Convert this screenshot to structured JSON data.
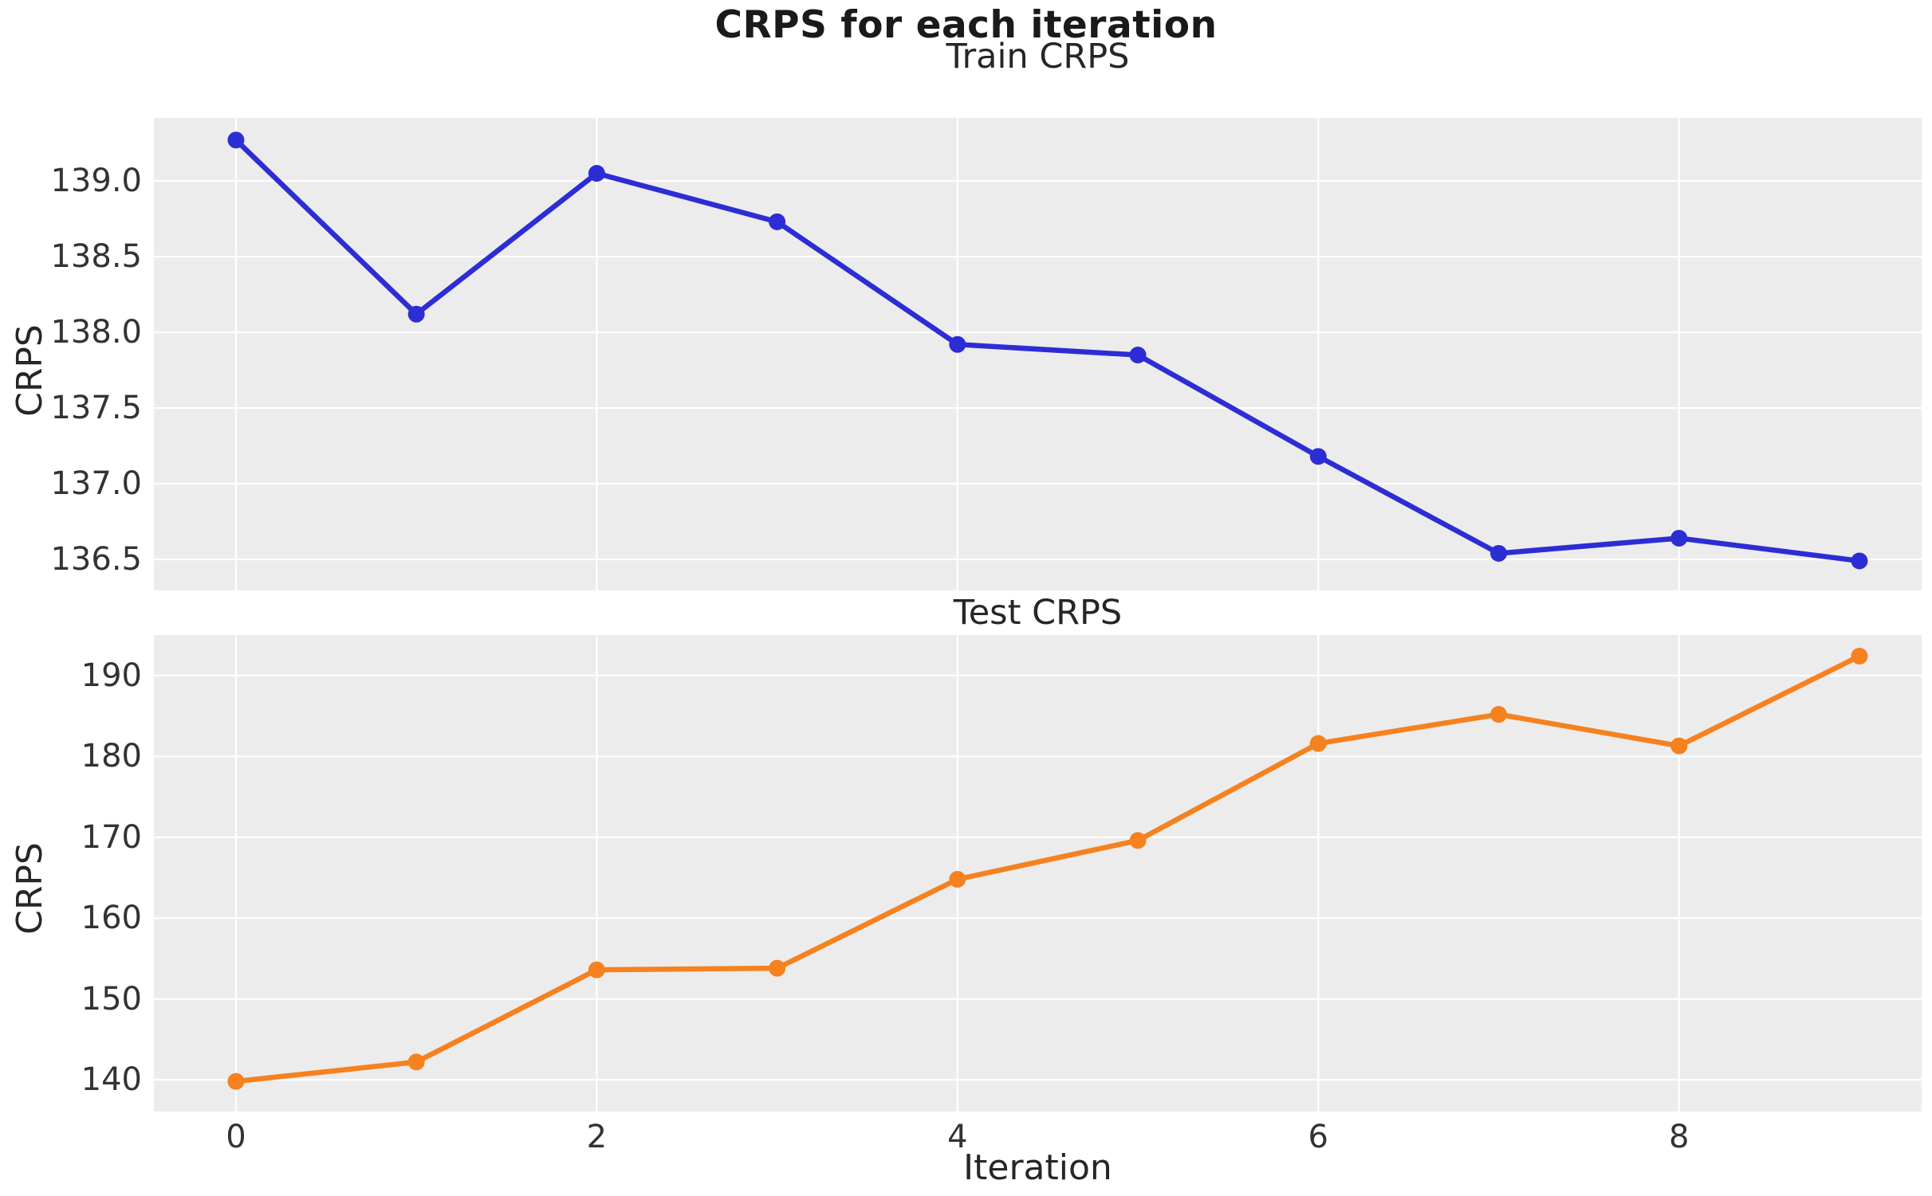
{
  "figure": {
    "title": "CRPS for each iteration",
    "background": "#ffffff",
    "panel_background": "#ececec",
    "grid_color": "#ffffff",
    "text_color": "#262626",
    "tick_color": "#333333"
  },
  "chart_data": [
    {
      "type": "line",
      "name": "train",
      "title": "Train CRPS",
      "ylabel": "CRPS",
      "xlabel": "",
      "color": "#2d2dd5",
      "x": [
        0,
        1,
        2,
        3,
        4,
        5,
        6,
        7,
        8,
        9
      ],
      "y": [
        139.27,
        138.12,
        139.05,
        138.73,
        137.92,
        137.85,
        137.18,
        136.54,
        136.64,
        136.49
      ],
      "yticks": [
        139.0,
        138.5,
        138.0,
        137.5,
        137.0,
        136.5
      ],
      "ytick_labels": [
        "139.0",
        "138.5",
        "138.0",
        "137.5",
        "137.0",
        "136.5"
      ],
      "xticks": [
        0,
        2,
        4,
        6,
        8
      ],
      "xtick_labels": [],
      "xlim": [
        -0.455,
        9.345
      ],
      "ylim": [
        136.295,
        139.416
      ],
      "grid": true,
      "legend": "none",
      "marker": "circle"
    },
    {
      "type": "line",
      "name": "test",
      "title": "Test CRPS",
      "ylabel": "CRPS",
      "xlabel": "Iteration",
      "color": "#f5811f",
      "x": [
        0,
        1,
        2,
        3,
        4,
        5,
        6,
        7,
        8,
        9
      ],
      "y": [
        139.8,
        142.2,
        153.6,
        153.8,
        164.8,
        169.6,
        181.6,
        185.2,
        181.3,
        192.4
      ],
      "yticks": [
        190,
        180,
        170,
        160,
        150,
        140
      ],
      "ytick_labels": [
        "190",
        "180",
        "170",
        "160",
        "150",
        "140"
      ],
      "xticks": [
        0,
        2,
        4,
        6,
        8
      ],
      "xtick_labels": [
        "0",
        "2",
        "4",
        "6",
        "8"
      ],
      "xlim": [
        -0.455,
        9.345
      ],
      "ylim": [
        136.07,
        195.01
      ],
      "grid": true,
      "legend": "none",
      "marker": "circle"
    }
  ]
}
